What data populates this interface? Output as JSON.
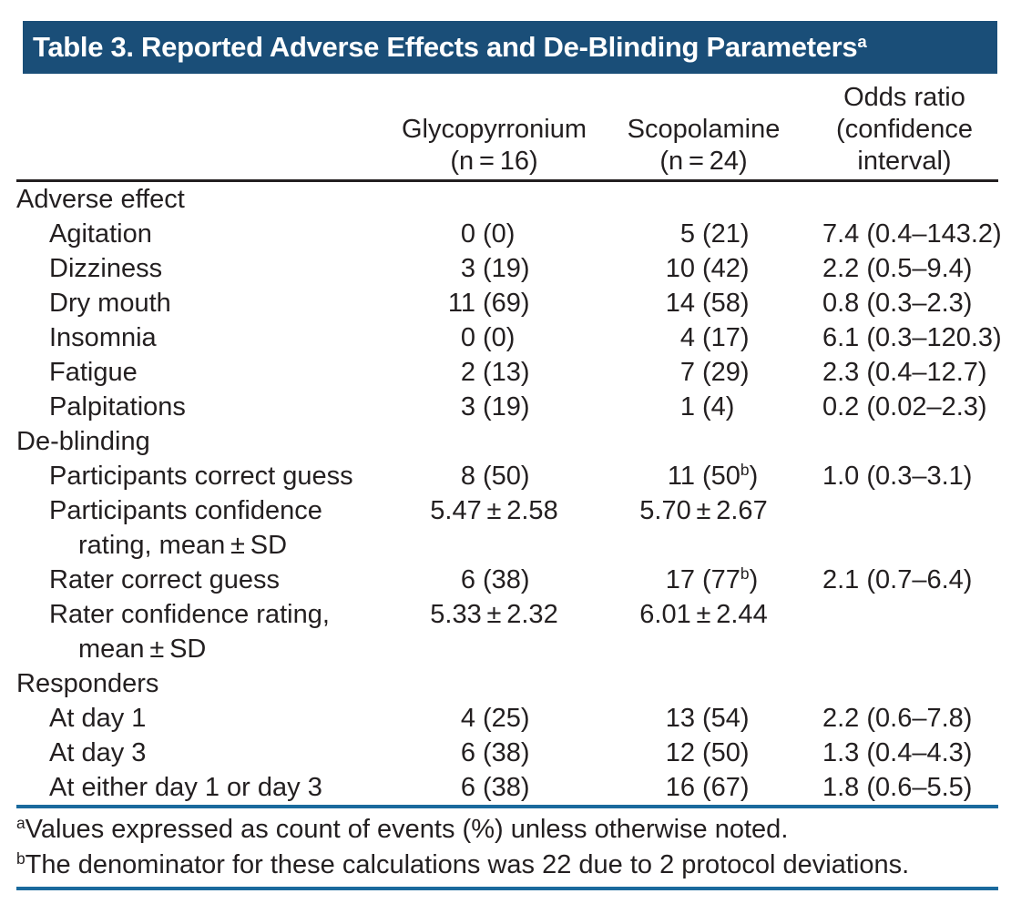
{
  "title": "Table 3. Reported Adverse Effects and De-Blinding Parameters^a",
  "colors": {
    "title_bar_background": "#1a4e78",
    "title_text": "#ffffff",
    "header_rule": "#231f20",
    "blue_rule": "#1a6a9d",
    "body_text": "#231f20"
  },
  "table": {
    "header": {
      "col2": [
        "Glycopyrronium",
        "(n = 16)"
      ],
      "col3": [
        "Scopolamine",
        "(n = 24)"
      ],
      "col4": [
        "Odds ratio",
        "(confidence",
        "interval)"
      ]
    },
    "rows": [
      {
        "type": "section",
        "label": "Adverse effect"
      },
      {
        "type": "data",
        "label": "Agitation",
        "g_n": "0",
        "g_p": "(0)",
        "s_n": "5",
        "s_p": "(21)",
        "or": "7.4 (0.4–143.2)"
      },
      {
        "type": "data",
        "label": "Dizziness",
        "g_n": "3",
        "g_p": "(19)",
        "s_n": "10",
        "s_p": "(42)",
        "or": "2.2 (0.5–9.4)"
      },
      {
        "type": "data",
        "label": "Dry mouth",
        "g_n": "11",
        "g_p": "(69)",
        "s_n": "14",
        "s_p": "(58)",
        "or": "0.8 (0.3–2.3)"
      },
      {
        "type": "data",
        "label": "Insomnia",
        "g_n": "0",
        "g_p": "(0)",
        "s_n": "4",
        "s_p": "(17)",
        "or": "6.1 (0.3–120.3)"
      },
      {
        "type": "data",
        "label": "Fatigue",
        "g_n": "2",
        "g_p": "(13)",
        "s_n": "7",
        "s_p": "(29)",
        "or": "2.3 (0.4–12.7)"
      },
      {
        "type": "data",
        "label": "Palpitations",
        "g_n": "3",
        "g_p": "(19)",
        "s_n": "1",
        "s_p": "(4)",
        "or": "0.2 (0.02–2.3)"
      },
      {
        "type": "section",
        "label": "De-blinding"
      },
      {
        "type": "data",
        "label": "Participants correct guess",
        "g_n": "8",
        "g_p": "(50)",
        "s_n": "11",
        "s_p": "(50^b)",
        "or": "1.0 (0.3–3.1)"
      },
      {
        "type": "data",
        "label": "Participants confidence",
        "g_c": "5.47 ± 2.58",
        "s_c": "5.70 ± 2.67",
        "or": ""
      },
      {
        "type": "cont",
        "label": "rating, mean ± SD"
      },
      {
        "type": "data",
        "label": "Rater correct guess",
        "g_n": "6",
        "g_p": "(38)",
        "s_n": "17",
        "s_p": "(77^b)",
        "or": "2.1 (0.7–6.4)"
      },
      {
        "type": "data",
        "label": "Rater confidence rating,",
        "g_c": "5.33 ± 2.32",
        "s_c": "6.01 ± 2.44",
        "or": ""
      },
      {
        "type": "cont",
        "label": "mean ± SD"
      },
      {
        "type": "section",
        "label": "Responders"
      },
      {
        "type": "data",
        "label": "At day 1",
        "g_n": "4",
        "g_p": "(25)",
        "s_n": "13",
        "s_p": "(54)",
        "or": "2.2 (0.6–7.8)"
      },
      {
        "type": "data",
        "label": "At day 3",
        "g_n": "6",
        "g_p": "(38)",
        "s_n": "12",
        "s_p": "(50)",
        "or": "1.3 (0.4–4.3)"
      },
      {
        "type": "data",
        "label": "At either day 1 or day 3",
        "g_n": "6",
        "g_p": "(38)",
        "s_n": "16",
        "s_p": "(67)",
        "or": "1.8 (0.6–5.5)"
      }
    ]
  },
  "footnotes": [
    "^aValues expressed as count of events (%) unless otherwise noted.",
    "^bThe denominator for these calculations was 22 due to 2 protocol deviations."
  ]
}
